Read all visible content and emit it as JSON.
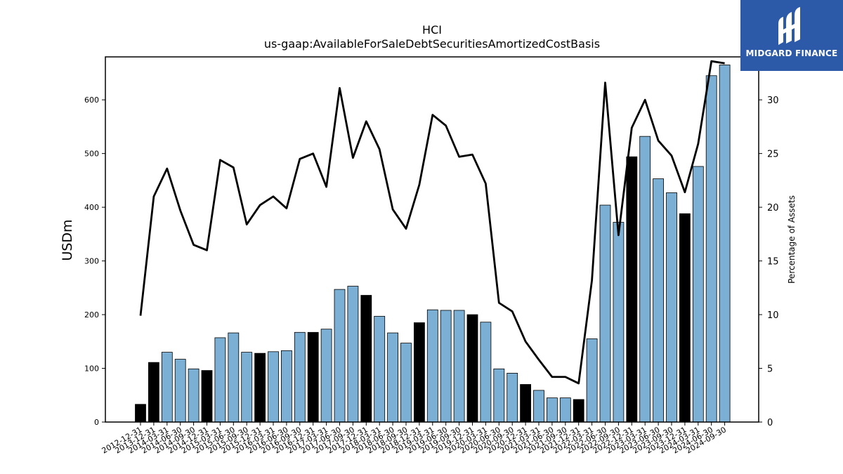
{
  "brand": {
    "name": "MIDGARD FINANCE",
    "bg_color": "#2d5aa8"
  },
  "chart_data": {
    "type": "bar",
    "title": "HCI",
    "subtitle": "us-gaap:AvailableForSaleDebtSecuritiesAmortizedCostBasis",
    "ylabel": "USDm",
    "y2label": "Percentage of Assets",
    "ylim": [
      0,
      680
    ],
    "y2lim": [
      0,
      34.0
    ],
    "yticks": [
      0,
      100,
      200,
      300,
      400,
      500,
      600
    ],
    "y2ticks": [
      0,
      5,
      10,
      15,
      20,
      25,
      30
    ],
    "colors": {
      "bar_default": "#7bafd4",
      "bar_highlight": "#000000",
      "line": "#000000"
    },
    "categories": [
      "2012-12-31",
      "2013-12-31",
      "2014-03-31",
      "2014-06-30",
      "2014-09-30",
      "2014-12-31",
      "2015-03-31",
      "2015-06-30",
      "2015-09-30",
      "2015-12-31",
      "2016-03-31",
      "2016-06-30",
      "2016-09-30",
      "2016-12-31",
      "2017-03-31",
      "2017-06-30",
      "2017-09-30",
      "2017-12-31",
      "2018-03-31",
      "2018-06-30",
      "2018-09-30",
      "2018-12-31",
      "2019-03-31",
      "2019-06-30",
      "2019-09-30",
      "2019-12-31",
      "2020-03-31",
      "2020-06-30",
      "2020-09-30",
      "2020-12-31",
      "2021-03-31",
      "2021-06-30",
      "2021-09-30",
      "2021-12-31",
      "2022-03-31",
      "2022-06-30",
      "2022-09-30",
      "2022-12-31",
      "2023-03-31",
      "2023-06-30",
      "2023-09-30",
      "2023-12-31",
      "2024-03-31",
      "2024-06-30",
      "2024-09-30"
    ],
    "series": [
      {
        "kind": "bar",
        "axis": "left",
        "values": [
          33,
          111,
          130,
          117,
          99,
          96,
          157,
          166,
          130,
          128,
          131,
          133,
          167,
          167,
          173,
          247,
          253,
          236,
          197,
          166,
          147,
          185,
          209,
          208,
          208,
          200,
          186,
          99,
          91,
          70,
          59,
          45,
          45,
          42,
          155,
          404,
          372,
          494,
          532,
          453,
          427,
          388,
          476,
          645,
          665
        ],
        "highlight": [
          true,
          true,
          false,
          false,
          false,
          true,
          false,
          false,
          false,
          true,
          false,
          false,
          false,
          true,
          false,
          false,
          false,
          true,
          false,
          false,
          false,
          true,
          false,
          false,
          false,
          true,
          false,
          false,
          false,
          true,
          false,
          false,
          false,
          true,
          false,
          false,
          false,
          true,
          false,
          false,
          false,
          true,
          false,
          false,
          false
        ]
      },
      {
        "kind": "line",
        "axis": "right",
        "values": [
          9.9,
          21.0,
          23.6,
          19.7,
          16.5,
          16.0,
          24.4,
          23.7,
          18.4,
          20.2,
          21.0,
          19.9,
          24.5,
          25.0,
          21.9,
          31.1,
          24.6,
          28.0,
          25.4,
          19.8,
          18.0,
          22.1,
          28.6,
          27.6,
          24.7,
          24.9,
          22.2,
          11.1,
          10.3,
          7.5,
          5.8,
          4.2,
          4.2,
          3.6,
          13.2,
          31.6,
          17.4,
          27.4,
          30.0,
          26.2,
          24.8,
          21.4,
          25.9,
          33.6,
          33.4
        ]
      }
    ]
  }
}
